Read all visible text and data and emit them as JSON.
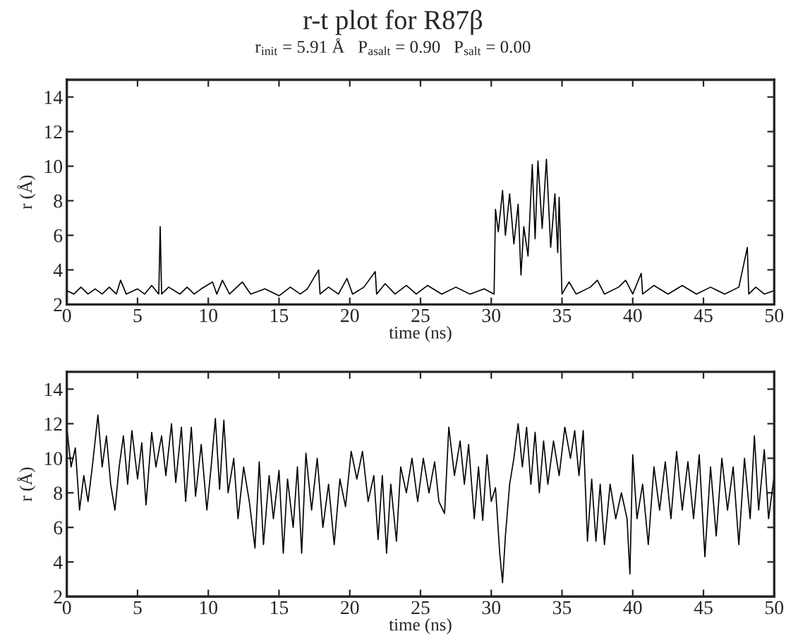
{
  "chart_data": [
    {
      "type": "line",
      "title": "r-t plot for R87β",
      "subtitle": "r$_{init}$ = 5.91 Å   P$_{asalt}$ = 0.90   P$_{salt}$ = 0.00",
      "xlabel": "time (ns)",
      "ylabel": "r (Å)",
      "xlim": [
        0,
        50
      ],
      "ylim": [
        2,
        15
      ],
      "xticks": [
        0,
        5,
        10,
        15,
        20,
        25,
        30,
        35,
        40,
        45,
        50
      ],
      "yticks": [
        2,
        4,
        6,
        8,
        10,
        12,
        14
      ],
      "grid": false,
      "marker": "none",
      "line_style": "solid",
      "series": [
        {
          "color": "#000000",
          "x": [
            0,
            0.5,
            1,
            1.5,
            2,
            2.5,
            3,
            3.5,
            3.8,
            4.2,
            5,
            5.5,
            6,
            6.5,
            6.6,
            6.7,
            7.2,
            8,
            8.5,
            9,
            9.5,
            10.3,
            10.6,
            11,
            11.5,
            12.4,
            13,
            14,
            15,
            15.8,
            16.5,
            17,
            17.8,
            17.9,
            18.5,
            19.2,
            19.8,
            20.2,
            21,
            21.8,
            21.9,
            22.5,
            23.2,
            24,
            24.7,
            25.5,
            26.5,
            27.5,
            28.5,
            29.5,
            30.2,
            30.3,
            30.5,
            30.8,
            31.0,
            31.3,
            31.6,
            31.9,
            32.1,
            32.3,
            32.6,
            32.9,
            33.1,
            33.3,
            33.6,
            33.9,
            34.2,
            34.5,
            34.7,
            34.8,
            35,
            35.5,
            36,
            37,
            37.5,
            38,
            39,
            39.5,
            40,
            40.6,
            40.7,
            41.5,
            42.5,
            43.5,
            44.5,
            45.5,
            46.5,
            47.5,
            48.1,
            48.2,
            48.7,
            49.3,
            50
          ],
          "values": [
            2.8,
            2.6,
            3.0,
            2.6,
            2.9,
            2.6,
            3.0,
            2.6,
            3.4,
            2.6,
            2.9,
            2.6,
            3.1,
            2.6,
            6.5,
            2.6,
            3.0,
            2.6,
            3.0,
            2.6,
            2.9,
            3.3,
            2.6,
            3.4,
            2.6,
            3.3,
            2.6,
            2.9,
            2.5,
            3.0,
            2.6,
            2.9,
            4.0,
            2.6,
            3.0,
            2.6,
            3.5,
            2.6,
            3.0,
            3.9,
            2.6,
            3.2,
            2.6,
            3.1,
            2.6,
            3.1,
            2.6,
            3.0,
            2.6,
            2.9,
            2.6,
            7.5,
            6.2,
            8.6,
            6.0,
            8.4,
            5.5,
            7.8,
            3.7,
            6.5,
            4.8,
            10.1,
            5.8,
            10.3,
            6.4,
            10.4,
            5.3,
            8.4,
            5.0,
            8.2,
            2.6,
            3.3,
            2.6,
            3.0,
            3.4,
            2.6,
            3.0,
            3.4,
            2.6,
            3.8,
            2.6,
            3.1,
            2.6,
            3.1,
            2.6,
            3.0,
            2.6,
            3.0,
            5.3,
            2.6,
            3.0,
            2.6,
            2.8
          ]
        }
      ]
    },
    {
      "type": "line",
      "xlabel": "time (ns)",
      "ylabel": "r (Å)",
      "xlim": [
        0,
        50
      ],
      "ylim": [
        2,
        15
      ],
      "xticks": [
        0,
        5,
        10,
        15,
        20,
        25,
        30,
        35,
        40,
        45,
        50
      ],
      "yticks": [
        2,
        4,
        6,
        8,
        10,
        12,
        14
      ],
      "grid": false,
      "marker": "none",
      "line_style": "solid",
      "series": [
        {
          "color": "#000000",
          "x": [
            0,
            0.3,
            0.6,
            0.9,
            1.2,
            1.5,
            1.8,
            2.2,
            2.5,
            2.8,
            3.1,
            3.4,
            3.7,
            4.0,
            4.3,
            4.6,
            5.0,
            5.3,
            5.6,
            6.0,
            6.3,
            6.7,
            7.0,
            7.4,
            7.7,
            8.1,
            8.4,
            8.8,
            9.1,
            9.5,
            9.9,
            10.2,
            10.5,
            10.8,
            11.1,
            11.4,
            11.8,
            12.1,
            12.5,
            12.9,
            13.3,
            13.6,
            13.9,
            14.3,
            14.6,
            15.0,
            15.3,
            15.6,
            16.0,
            16.3,
            16.6,
            16.9,
            17.3,
            17.7,
            18.1,
            18.5,
            18.9,
            19.3,
            19.7,
            20.1,
            20.5,
            20.9,
            21.3,
            21.7,
            22.0,
            22.3,
            22.6,
            22.9,
            23.3,
            23.6,
            24.0,
            24.4,
            24.8,
            25.2,
            25.6,
            26.0,
            26.3,
            26.7,
            27.0,
            27.4,
            27.8,
            28.1,
            28.4,
            28.8,
            29.1,
            29.4,
            29.7,
            30.0,
            30.3,
            30.6,
            30.8,
            31.0,
            31.3,
            31.6,
            31.9,
            32.2,
            32.5,
            32.8,
            33.1,
            33.4,
            33.7,
            34.0,
            34.4,
            34.8,
            35.2,
            35.6,
            35.9,
            36.2,
            36.5,
            36.8,
            37.1,
            37.4,
            37.7,
            38.0,
            38.4,
            38.8,
            39.2,
            39.6,
            39.8,
            40.0,
            40.3,
            40.7,
            41.1,
            41.5,
            41.9,
            42.3,
            42.7,
            43.1,
            43.5,
            43.9,
            44.3,
            44.7,
            45.1,
            45.5,
            45.9,
            46.3,
            46.7,
            47.1,
            47.5,
            47.9,
            48.3,
            48.6,
            48.9,
            49.3,
            49.6,
            50
          ],
          "values": [
            11.8,
            9.5,
            10.6,
            7.0,
            9.0,
            7.5,
            9.5,
            12.5,
            9.5,
            11.3,
            8.5,
            7.0,
            9.5,
            11.3,
            8.5,
            11.6,
            8.8,
            10.9,
            7.3,
            11.5,
            9.5,
            11.3,
            9.0,
            12.0,
            8.6,
            11.8,
            7.5,
            11.8,
            7.8,
            10.8,
            7.0,
            9.5,
            12.3,
            8.2,
            12.2,
            8.0,
            10.0,
            6.5,
            9.5,
            7.5,
            4.8,
            9.8,
            5.0,
            9.0,
            6.5,
            9.3,
            4.5,
            8.8,
            6.0,
            9.5,
            4.5,
            10.3,
            7.0,
            10.0,
            6.0,
            8.5,
            5.0,
            8.8,
            7.2,
            10.4,
            8.8,
            10.4,
            7.5,
            9.0,
            5.3,
            9.0,
            4.5,
            8.5,
            5.2,
            9.5,
            8.0,
            10.0,
            7.5,
            10.0,
            8.0,
            9.8,
            7.5,
            6.8,
            11.8,
            9.0,
            11.0,
            8.5,
            10.8,
            6.5,
            9.5,
            6.4,
            10.2,
            7.5,
            8.3,
            4.5,
            2.8,
            5.5,
            8.5,
            10.0,
            12.0,
            9.5,
            11.8,
            8.5,
            11.5,
            8.0,
            11.0,
            8.5,
            11.0,
            9.0,
            11.8,
            10.0,
            11.6,
            9.0,
            11.6,
            5.2,
            8.8,
            5.2,
            8.5,
            5.0,
            8.5,
            6.5,
            8.0,
            6.5,
            3.3,
            10.2,
            6.5,
            8.5,
            5.0,
            9.5,
            7.0,
            9.8,
            6.5,
            10.4,
            7.0,
            9.8,
            6.5,
            10.2,
            4.3,
            9.5,
            5.5,
            10.0,
            7.0,
            9.5,
            5.0,
            10.0,
            6.5,
            11.3,
            7.0,
            10.5,
            6.5,
            9.0
          ]
        }
      ]
    }
  ]
}
